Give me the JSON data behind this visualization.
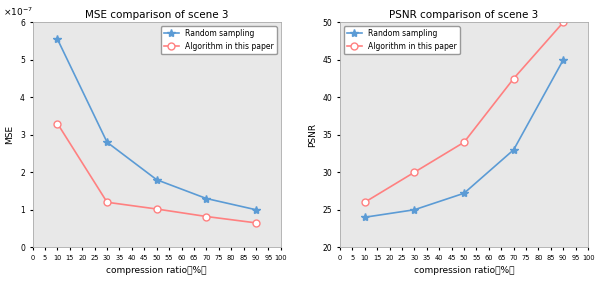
{
  "x": [
    10,
    30,
    50,
    70,
    90
  ],
  "mse_random": [
    5.55e-07,
    2.8e-07,
    1.8e-07,
    1.3e-07,
    1e-07
  ],
  "mse_algo": [
    3.3e-07,
    1.2e-07,
    1.02e-07,
    8.2e-08,
    6.5e-08
  ],
  "psnr_random": [
    24.0,
    25.0,
    27.2,
    33.0,
    45.0
  ],
  "psnr_algo": [
    26.0,
    30.0,
    34.0,
    42.5,
    50.0
  ],
  "mse_title": "MSE comparison of scene 3",
  "psnr_title": "PSNR comparison of scene 3",
  "xlabel": "compression ratio（%）",
  "mse_ylabel": "MSE",
  "psnr_ylabel": "PSNR",
  "xtick_values": [
    0,
    5,
    10,
    15,
    20,
    25,
    30,
    35,
    40,
    45,
    50,
    55,
    60,
    65,
    70,
    75,
    80,
    85,
    90,
    95,
    100
  ],
  "xtick_labels": [
    "0",
    "5",
    "10",
    "15",
    "20",
    "25",
    "30",
    "35",
    "40",
    "45",
    "50",
    "55",
    "60",
    "65",
    "70",
    "75",
    "80",
    "85",
    "90",
    "95",
    "100"
  ],
  "mse_ylim": [
    0,
    6e-07
  ],
  "mse_yticks": [
    0,
    1e-07,
    2e-07,
    3e-07,
    4e-07,
    5e-07,
    6e-07
  ],
  "psnr_ylim": [
    20,
    50
  ],
  "psnr_yticks": [
    20,
    25,
    30,
    35,
    40,
    45,
    50
  ],
  "legend_random": "Random sampling",
  "legend_algo": "Algorithm in this paper",
  "color_random": "#5B9BD5",
  "color_algo": "#FF8080",
  "bg_color": "#E8E8E8"
}
